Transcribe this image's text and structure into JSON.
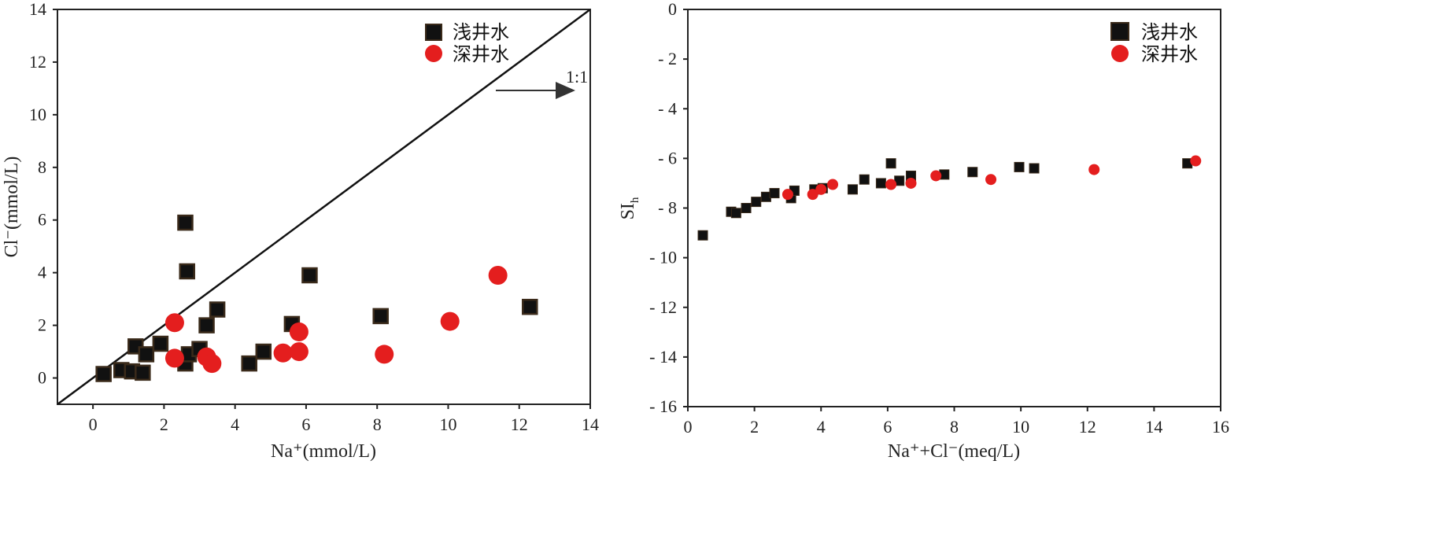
{
  "chart_data": [
    {
      "type": "scatter",
      "xlabel": "Na⁺(mmol/L)",
      "ylabel": "Cl⁻(mmol/L)",
      "xlim": [
        -1,
        14
      ],
      "ylim": [
        -1,
        14
      ],
      "xticks": [
        0,
        2,
        4,
        6,
        8,
        10,
        12,
        14
      ],
      "yticks": [
        0,
        2,
        4,
        6,
        8,
        10,
        12,
        14
      ],
      "legend_position": "top-center",
      "reference_line": {
        "label": "1:1",
        "slope": 1,
        "intercept": 0
      },
      "series": [
        {
          "name": "浅井水",
          "marker": "square",
          "color": "#111111",
          "points": [
            [
              0.3,
              0.15
            ],
            [
              0.8,
              0.3
            ],
            [
              1.1,
              0.25
            ],
            [
              1.4,
              0.2
            ],
            [
              1.2,
              1.2
            ],
            [
              1.5,
              0.9
            ],
            [
              1.9,
              1.3
            ],
            [
              2.6,
              5.9
            ],
            [
              2.65,
              4.05
            ],
            [
              2.6,
              0.55
            ],
            [
              2.7,
              0.9
            ],
            [
              3.0,
              1.1
            ],
            [
              3.2,
              2.0
            ],
            [
              3.5,
              2.6
            ],
            [
              4.4,
              0.55
            ],
            [
              4.8,
              1.0
            ],
            [
              5.6,
              2.05
            ],
            [
              6.1,
              3.9
            ],
            [
              8.1,
              2.35
            ],
            [
              12.3,
              2.7
            ]
          ]
        },
        {
          "name": "深井水",
          "marker": "circle",
          "color": "#e41e1e",
          "points": [
            [
              2.3,
              2.1
            ],
            [
              2.3,
              0.75
            ],
            [
              3.2,
              0.8
            ],
            [
              3.35,
              0.55
            ],
            [
              5.35,
              0.95
            ],
            [
              5.8,
              1.75
            ],
            [
              5.8,
              1.0
            ],
            [
              8.2,
              0.9
            ],
            [
              10.05,
              2.15
            ],
            [
              11.4,
              3.9
            ]
          ]
        }
      ]
    },
    {
      "type": "scatter",
      "xlabel": "Na⁺+Cl⁻(meq/L)",
      "ylabel": "SIh",
      "xlim": [
        0,
        16
      ],
      "ylim": [
        -16,
        0
      ],
      "xticks": [
        0,
        2,
        4,
        6,
        8,
        10,
        12,
        14,
        16
      ],
      "yticks": [
        0,
        -2,
        -4,
        -6,
        -8,
        -10,
        -12,
        -14,
        -16
      ],
      "legend_position": "top-right",
      "series": [
        {
          "name": "浅井水",
          "marker": "square",
          "color": "#111111",
          "points": [
            [
              0.45,
              -9.1
            ],
            [
              1.3,
              -8.15
            ],
            [
              1.45,
              -8.2
            ],
            [
              1.75,
              -8.0
            ],
            [
              2.05,
              -7.75
            ],
            [
              2.35,
              -7.55
            ],
            [
              2.6,
              -7.4
            ],
            [
              3.1,
              -7.6
            ],
            [
              3.2,
              -7.3
            ],
            [
              3.8,
              -7.25
            ],
            [
              4.05,
              -7.2
            ],
            [
              4.95,
              -7.25
            ],
            [
              5.3,
              -6.85
            ],
            [
              5.8,
              -7.0
            ],
            [
              6.1,
              -6.2
            ],
            [
              6.35,
              -6.9
            ],
            [
              6.7,
              -6.7
            ],
            [
              7.7,
              -6.65
            ],
            [
              8.55,
              -6.55
            ],
            [
              9.95,
              -6.35
            ],
            [
              10.4,
              -6.4
            ],
            [
              15.0,
              -6.2
            ]
          ]
        },
        {
          "name": "深井水",
          "marker": "circle",
          "color": "#e41e1e",
          "points": [
            [
              3.0,
              -7.45
            ],
            [
              3.75,
              -7.45
            ],
            [
              4.0,
              -7.25
            ],
            [
              4.35,
              -7.05
            ],
            [
              6.1,
              -7.05
            ],
            [
              6.7,
              -7.0
            ],
            [
              7.45,
              -6.7
            ],
            [
              9.1,
              -6.85
            ],
            [
              12.2,
              -6.45
            ],
            [
              15.25,
              -6.1
            ]
          ]
        }
      ]
    }
  ]
}
